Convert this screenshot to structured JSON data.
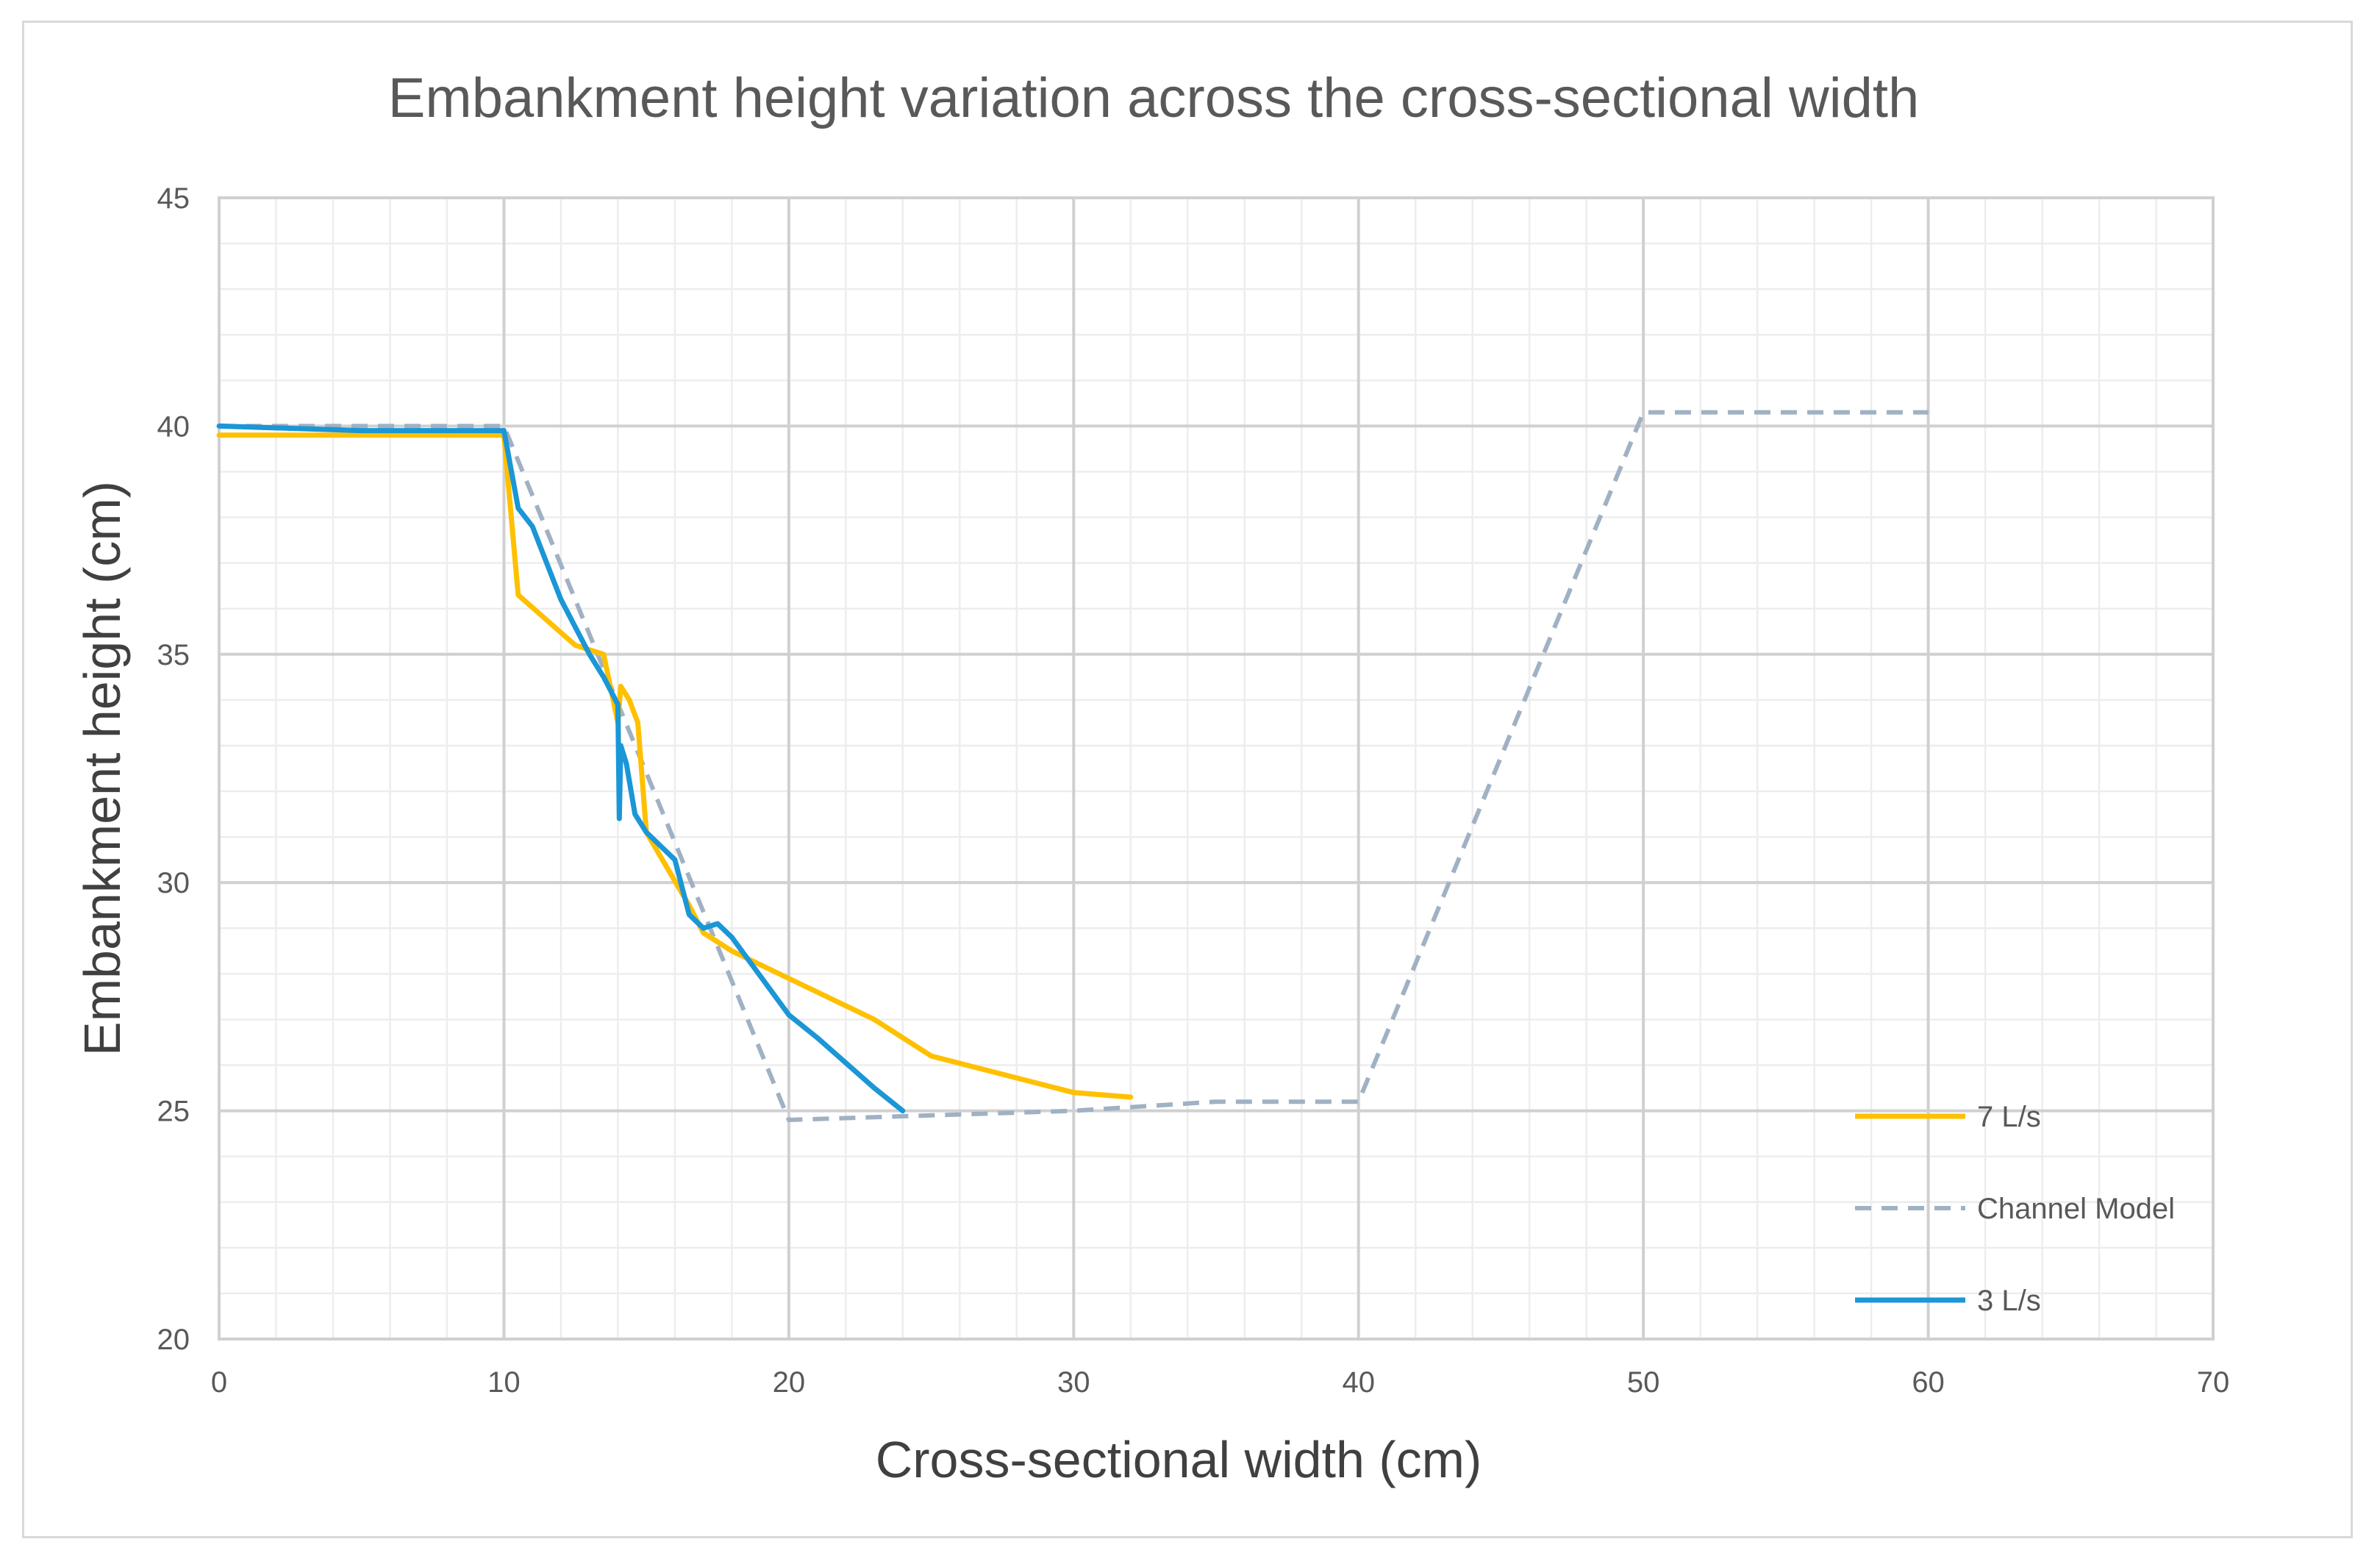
{
  "chart_data": {
    "type": "line",
    "title": "Embankment height variation across the cross-sectional width",
    "xlabel": "Cross-sectional width (cm)",
    "ylabel": "Embankment height (cm)",
    "xlim": [
      0,
      70
    ],
    "ylim": [
      20,
      45
    ],
    "x_ticks": [
      0,
      10,
      20,
      30,
      40,
      50,
      60,
      70
    ],
    "y_ticks": [
      20,
      25,
      30,
      35,
      40,
      45
    ],
    "x_tick_labels": [
      "0",
      "10",
      "20",
      "30",
      "40",
      "50",
      "60",
      "70"
    ],
    "y_tick_labels": [
      "20",
      "25",
      "30",
      "35",
      "40",
      "45"
    ],
    "grid": true,
    "legend_position": "bottom-right",
    "series": [
      {
        "name": "7 L/s",
        "color": "#FFC000",
        "style": "solid",
        "x": [
          0,
          5,
          10,
          10.5,
          12.5,
          13.5,
          14,
          14.1,
          14.4,
          14.7,
          15,
          16.5,
          17,
          18,
          20,
          23,
          25,
          30,
          32
        ],
        "y": [
          39.8,
          39.8,
          39.8,
          36.3,
          35.2,
          35.0,
          33.5,
          34.3,
          34.0,
          33.5,
          31.1,
          29.5,
          28.9,
          28.5,
          27.9,
          27.0,
          26.2,
          25.4,
          25.3
        ]
      },
      {
        "name": "Channel Model",
        "color": "#A0B1C4",
        "style": "dashed",
        "x": [
          0,
          10,
          20,
          30,
          35,
          40,
          50,
          60
        ],
        "y": [
          40.0,
          40.0,
          24.8,
          25.0,
          25.2,
          25.2,
          40.3,
          40.3
        ]
      },
      {
        "name": "3 L/s",
        "color": "#1B96D6",
        "style": "solid",
        "x": [
          0,
          5,
          10,
          10.5,
          11,
          11.5,
          12,
          13,
          13.5,
          14,
          14.05,
          14.1,
          14.3,
          14.6,
          15,
          16,
          16.5,
          17,
          17.5,
          18,
          20,
          21,
          23,
          24
        ],
        "y": [
          40.0,
          39.9,
          39.9,
          38.2,
          37.8,
          37.0,
          36.2,
          35.0,
          34.5,
          33.9,
          31.4,
          33.0,
          32.6,
          31.5,
          31.1,
          30.5,
          29.3,
          29.0,
          29.1,
          28.8,
          27.1,
          26.6,
          25.5,
          25.0
        ]
      }
    ]
  }
}
